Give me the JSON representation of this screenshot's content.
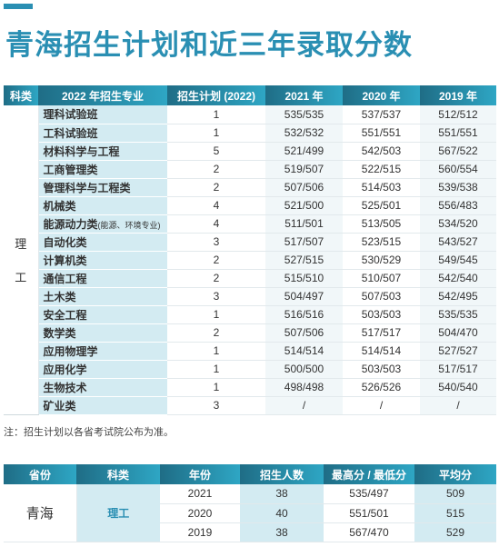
{
  "title": "青海招生计划和近三年录取分数",
  "main_table": {
    "headers": [
      "科类",
      "2022 年招生专业",
      "招生计划 (2022)",
      "2021 年",
      "2020 年",
      "2019 年"
    ],
    "subject": [
      "理",
      "工"
    ],
    "rows": [
      {
        "major": "理科试验班",
        "note": "",
        "plan": "1",
        "s2021": "535/535",
        "s2020": "537/537",
        "s2019": "512/512"
      },
      {
        "major": "工科试验班",
        "note": "",
        "plan": "1",
        "s2021": "532/532",
        "s2020": "551/551",
        "s2019": "551/551"
      },
      {
        "major": "材料科学与工程",
        "note": "",
        "plan": "5",
        "s2021": "521/499",
        "s2020": "542/503",
        "s2019": "567/522"
      },
      {
        "major": "工商管理类",
        "note": "",
        "plan": "2",
        "s2021": "519/507",
        "s2020": "522/515",
        "s2019": "560/554"
      },
      {
        "major": "管理科学与工程类",
        "note": "",
        "plan": "2",
        "s2021": "507/506",
        "s2020": "514/503",
        "s2019": "539/538"
      },
      {
        "major": "机械类",
        "note": "",
        "plan": "4",
        "s2021": "521/500",
        "s2020": "525/501",
        "s2019": "556/483"
      },
      {
        "major": "能源动力类",
        "note": "(能源、环境专业)",
        "plan": "4",
        "s2021": "511/501",
        "s2020": "513/505",
        "s2019": "534/520"
      },
      {
        "major": "自动化类",
        "note": "",
        "plan": "3",
        "s2021": "517/507",
        "s2020": "523/515",
        "s2019": "543/527"
      },
      {
        "major": "计算机类",
        "note": "",
        "plan": "2",
        "s2021": "527/515",
        "s2020": "530/529",
        "s2019": "549/545"
      },
      {
        "major": "通信工程",
        "note": "",
        "plan": "2",
        "s2021": "515/510",
        "s2020": "510/507",
        "s2019": "542/540"
      },
      {
        "major": "土木类",
        "note": "",
        "plan": "3",
        "s2021": "504/497",
        "s2020": "507/503",
        "s2019": "542/495"
      },
      {
        "major": "安全工程",
        "note": "",
        "plan": "1",
        "s2021": "516/516",
        "s2020": "503/503",
        "s2019": "535/535"
      },
      {
        "major": "数学类",
        "note": "",
        "plan": "2",
        "s2021": "507/506",
        "s2020": "517/517",
        "s2019": "504/470"
      },
      {
        "major": "应用物理学",
        "note": "",
        "plan": "1",
        "s2021": "514/514",
        "s2020": "514/514",
        "s2019": "527/527"
      },
      {
        "major": "应用化学",
        "note": "",
        "plan": "1",
        "s2021": "500/500",
        "s2020": "503/503",
        "s2019": "517/517"
      },
      {
        "major": "生物技术",
        "note": "",
        "plan": "1",
        "s2021": "498/498",
        "s2020": "526/526",
        "s2019": "540/540"
      },
      {
        "major": "矿业类",
        "note": "",
        "plan": "3",
        "s2021": "/",
        "s2020": "/",
        "s2019": "/"
      }
    ]
  },
  "footnote": "注：招生计划以各省考试院公布为准。",
  "summary_table": {
    "headers": [
      "省份",
      "科类",
      "年份",
      "招生人数",
      "最高分 / 最低分",
      "平均分"
    ],
    "province": "青海",
    "subject": "理工",
    "rows": [
      {
        "year": "2021",
        "count": "38",
        "range": "535/497",
        "avg": "509"
      },
      {
        "year": "2020",
        "count": "40",
        "range": "551/501",
        "avg": "515"
      },
      {
        "year": "2019",
        "count": "38",
        "range": "567/470",
        "avg": "529"
      }
    ]
  }
}
